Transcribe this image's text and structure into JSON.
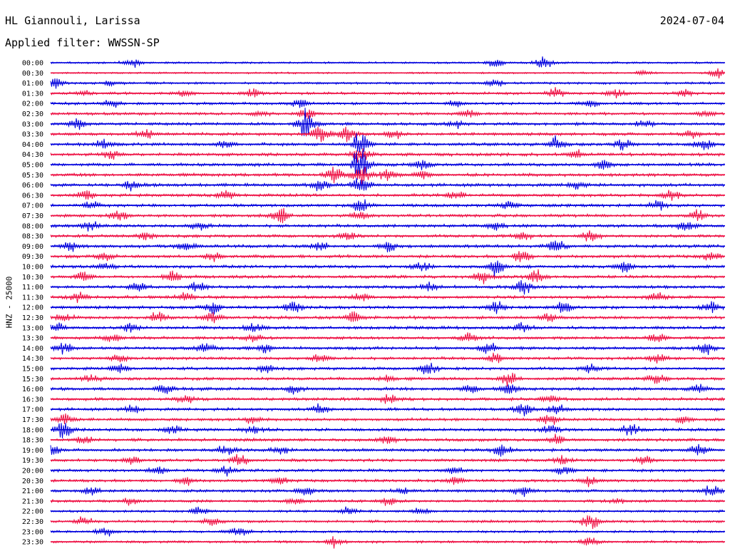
{
  "header": {
    "station": "HL Giannouli, Larissa",
    "date": "2024-07-04",
    "filter": "Applied filter: WWSSN-SP"
  },
  "chart_data": {
    "type": "line",
    "subtype": "helicorder",
    "ylabel": "HNZ - 25000",
    "trace_colors": [
      "#0000dd",
      "#ee1144"
    ],
    "rows": [
      {
        "label": "00:00",
        "level": 0.15,
        "events": [
          [
            0.12,
            0.8
          ],
          [
            0.66,
            0.6
          ],
          [
            0.73,
            0.9
          ]
        ]
      },
      {
        "label": "00:30",
        "level": 0.08,
        "events": [
          [
            0.99,
            0.9
          ],
          [
            0.88,
            0.3
          ]
        ]
      },
      {
        "label": "01:00",
        "level": 0.25,
        "events": [
          [
            0.005,
            0.9
          ],
          [
            0.09,
            0.4
          ],
          [
            0.66,
            0.6
          ]
        ]
      },
      {
        "label": "01:30",
        "level": 0.35,
        "events": [
          [
            0.05,
            0.4
          ],
          [
            0.2,
            0.5
          ],
          [
            0.3,
            0.6
          ],
          [
            0.75,
            0.8
          ],
          [
            0.84,
            0.7
          ],
          [
            0.94,
            0.6
          ]
        ]
      },
      {
        "label": "02:00",
        "level": 0.4,
        "events": [
          [
            0.09,
            0.5
          ],
          [
            0.37,
            0.6
          ],
          [
            0.6,
            0.5
          ],
          [
            0.8,
            0.5
          ]
        ]
      },
      {
        "label": "02:30",
        "level": 0.4,
        "events": [
          [
            0.31,
            0.5
          ],
          [
            0.38,
            0.8
          ],
          [
            0.62,
            0.7
          ],
          [
            0.97,
            0.5
          ]
        ]
      },
      {
        "label": "03:00",
        "level": 0.5,
        "events": [
          [
            0.04,
            0.8
          ],
          [
            0.38,
            2.2
          ],
          [
            0.6,
            0.6
          ],
          [
            0.88,
            0.6
          ]
        ]
      },
      {
        "label": "03:30",
        "level": 0.5,
        "events": [
          [
            0.14,
            0.7
          ],
          [
            0.4,
            1.5
          ],
          [
            0.44,
            1.2
          ],
          [
            0.51,
            0.9
          ],
          [
            0.95,
            0.6
          ]
        ]
      },
      {
        "label": "04:00",
        "level": 0.55,
        "events": [
          [
            0.08,
            0.8
          ],
          [
            0.26,
            0.7
          ],
          [
            0.46,
            1.8
          ],
          [
            0.75,
            1.0
          ],
          [
            0.85,
            0.8
          ],
          [
            0.97,
            1.0
          ]
        ]
      },
      {
        "label": "04:30",
        "level": 0.55,
        "events": [
          [
            0.09,
            0.7
          ],
          [
            0.46,
            1.2
          ],
          [
            0.78,
            0.7
          ]
        ]
      },
      {
        "label": "05:00",
        "level": 0.55,
        "events": [
          [
            0.46,
            3.0
          ],
          [
            0.55,
            0.8
          ],
          [
            0.82,
            0.7
          ]
        ]
      },
      {
        "label": "05:30",
        "level": 0.55,
        "events": [
          [
            0.42,
            1.4
          ],
          [
            0.46,
            1.8
          ],
          [
            0.5,
            1.0
          ],
          [
            0.55,
            0.7
          ]
        ]
      },
      {
        "label": "06:00",
        "level": 0.6,
        "events": [
          [
            0.12,
            0.7
          ],
          [
            0.4,
            0.8
          ],
          [
            0.46,
            1.5
          ],
          [
            0.78,
            0.6
          ]
        ]
      },
      {
        "label": "06:30",
        "level": 0.55,
        "events": [
          [
            0.05,
            0.7
          ],
          [
            0.26,
            0.6
          ],
          [
            0.6,
            0.6
          ],
          [
            0.92,
            0.8
          ]
        ]
      },
      {
        "label": "07:00",
        "level": 0.55,
        "events": [
          [
            0.06,
            0.6
          ],
          [
            0.46,
            1.2
          ],
          [
            0.68,
            0.6
          ],
          [
            0.9,
            0.6
          ]
        ]
      },
      {
        "label": "07:30",
        "level": 0.55,
        "events": [
          [
            0.1,
            0.8
          ],
          [
            0.34,
            1.2
          ],
          [
            0.46,
            0.6
          ],
          [
            0.96,
            0.7
          ]
        ]
      },
      {
        "label": "08:00",
        "level": 0.55,
        "events": [
          [
            0.06,
            0.7
          ],
          [
            0.22,
            0.6
          ],
          [
            0.66,
            0.7
          ],
          [
            0.94,
            0.8
          ]
        ]
      },
      {
        "label": "08:30",
        "level": 0.5,
        "events": [
          [
            0.14,
            0.6
          ],
          [
            0.44,
            0.7
          ],
          [
            0.7,
            0.7
          ],
          [
            0.8,
            0.9
          ]
        ]
      },
      {
        "label": "09:00",
        "level": 0.55,
        "events": [
          [
            0.03,
            0.7
          ],
          [
            0.2,
            0.8
          ],
          [
            0.4,
            0.7
          ],
          [
            0.5,
            0.8
          ],
          [
            0.75,
            0.9
          ]
        ]
      },
      {
        "label": "09:30",
        "level": 0.55,
        "events": [
          [
            0.08,
            0.6
          ],
          [
            0.24,
            0.7
          ],
          [
            0.7,
            1.0
          ],
          [
            0.98,
            0.7
          ]
        ]
      },
      {
        "label": "10:00",
        "level": 0.55,
        "events": [
          [
            0.08,
            0.6
          ],
          [
            0.55,
            0.7
          ],
          [
            0.66,
            1.2
          ],
          [
            0.85,
            0.8
          ]
        ]
      },
      {
        "label": "10:30",
        "level": 0.55,
        "events": [
          [
            0.05,
            0.7
          ],
          [
            0.18,
            0.9
          ],
          [
            0.64,
            1.1
          ],
          [
            0.72,
            0.9
          ]
        ]
      },
      {
        "label": "11:00",
        "level": 0.55,
        "events": [
          [
            0.13,
            0.7
          ],
          [
            0.22,
            0.8
          ],
          [
            0.56,
            0.7
          ],
          [
            0.7,
            1.1
          ]
        ]
      },
      {
        "label": "11:30",
        "level": 0.55,
        "events": [
          [
            0.04,
            0.6
          ],
          [
            0.2,
            0.7
          ],
          [
            0.46,
            0.6
          ],
          [
            0.9,
            0.6
          ]
        ]
      },
      {
        "label": "12:00",
        "level": 0.55,
        "events": [
          [
            0.24,
            0.9
          ],
          [
            0.36,
            1.0
          ],
          [
            0.66,
            0.9
          ],
          [
            0.76,
            0.8
          ],
          [
            0.98,
            0.8
          ]
        ]
      },
      {
        "label": "12:30",
        "level": 0.55,
        "events": [
          [
            0.02,
            0.7
          ],
          [
            0.16,
            1.0
          ],
          [
            0.24,
            0.9
          ],
          [
            0.45,
            0.8
          ],
          [
            0.74,
            0.7
          ]
        ]
      },
      {
        "label": "13:00",
        "level": 0.55,
        "events": [
          [
            0.01,
            0.8
          ],
          [
            0.12,
            0.6
          ],
          [
            0.3,
            0.7
          ],
          [
            0.7,
            0.8
          ]
        ]
      },
      {
        "label": "13:30",
        "level": 0.5,
        "events": [
          [
            0.09,
            0.6
          ],
          [
            0.3,
            0.6
          ],
          [
            0.62,
            0.7
          ],
          [
            0.9,
            0.7
          ]
        ]
      },
      {
        "label": "14:00",
        "level": 0.55,
        "events": [
          [
            0.02,
            0.8
          ],
          [
            0.23,
            0.7
          ],
          [
            0.32,
            0.7
          ],
          [
            0.65,
            0.9
          ],
          [
            0.97,
            1.0
          ]
        ]
      },
      {
        "label": "14:30",
        "level": 0.5,
        "events": [
          [
            0.1,
            0.6
          ],
          [
            0.4,
            0.6
          ],
          [
            0.66,
            0.7
          ],
          [
            0.9,
            0.7
          ]
        ]
      },
      {
        "label": "15:00",
        "level": 0.5,
        "events": [
          [
            0.1,
            0.8
          ],
          [
            0.32,
            0.6
          ],
          [
            0.56,
            0.9
          ],
          [
            0.8,
            0.6
          ]
        ]
      },
      {
        "label": "15:30",
        "level": 0.55,
        "events": [
          [
            0.06,
            0.6
          ],
          [
            0.5,
            0.6
          ],
          [
            0.68,
            1.1
          ],
          [
            0.9,
            0.8
          ]
        ]
      },
      {
        "label": "16:00",
        "level": 0.55,
        "events": [
          [
            0.17,
            0.7
          ],
          [
            0.36,
            0.6
          ],
          [
            0.62,
            0.7
          ],
          [
            0.68,
            0.9
          ],
          [
            0.96,
            0.7
          ]
        ]
      },
      {
        "label": "16:30",
        "level": 0.5,
        "events": [
          [
            0.2,
            0.6
          ],
          [
            0.5,
            0.6
          ],
          [
            0.74,
            0.6
          ]
        ]
      },
      {
        "label": "17:00",
        "level": 0.5,
        "events": [
          [
            0.12,
            0.6
          ],
          [
            0.4,
            0.8
          ],
          [
            0.7,
            0.9
          ],
          [
            0.75,
            0.8
          ]
        ]
      },
      {
        "label": "17:30",
        "level": 0.5,
        "events": [
          [
            0.02,
            0.7
          ],
          [
            0.3,
            0.6
          ],
          [
            0.74,
            0.8
          ],
          [
            0.94,
            0.6
          ]
        ]
      },
      {
        "label": "18:00",
        "level": 0.55,
        "events": [
          [
            0.02,
            1.3
          ],
          [
            0.18,
            0.7
          ],
          [
            0.3,
            0.6
          ],
          [
            0.74,
            0.8
          ],
          [
            0.86,
            0.8
          ]
        ]
      },
      {
        "label": "18:30",
        "level": 0.5,
        "events": [
          [
            0.05,
            0.6
          ],
          [
            0.5,
            0.6
          ],
          [
            0.75,
            0.8
          ]
        ]
      },
      {
        "label": "19:00",
        "level": 0.5,
        "events": [
          [
            0.0,
            0.8
          ],
          [
            0.26,
            0.7
          ],
          [
            0.34,
            0.7
          ],
          [
            0.67,
            0.9
          ],
          [
            0.96,
            0.8
          ]
        ]
      },
      {
        "label": "19:30",
        "level": 0.5,
        "events": [
          [
            0.12,
            0.8
          ],
          [
            0.28,
            0.9
          ],
          [
            0.76,
            0.7
          ],
          [
            0.88,
            0.6
          ]
        ]
      },
      {
        "label": "20:00",
        "level": 0.45,
        "events": [
          [
            0.16,
            0.6
          ],
          [
            0.26,
            0.7
          ],
          [
            0.6,
            0.5
          ],
          [
            0.76,
            0.6
          ]
        ]
      },
      {
        "label": "20:30",
        "level": 0.45,
        "events": [
          [
            0.2,
            0.6
          ],
          [
            0.34,
            0.6
          ],
          [
            0.6,
            0.5
          ],
          [
            0.8,
            0.7
          ]
        ]
      },
      {
        "label": "21:00",
        "level": 0.45,
        "events": [
          [
            0.06,
            0.6
          ],
          [
            0.38,
            0.8
          ],
          [
            0.52,
            0.6
          ],
          [
            0.7,
            0.7
          ],
          [
            0.98,
            0.8
          ]
        ]
      },
      {
        "label": "21:30",
        "level": 0.4,
        "events": [
          [
            0.12,
            0.5
          ],
          [
            0.36,
            0.5
          ],
          [
            0.5,
            0.6
          ],
          [
            0.84,
            0.5
          ]
        ]
      },
      {
        "label": "22:00",
        "level": 0.3,
        "events": [
          [
            0.22,
            0.6
          ],
          [
            0.44,
            0.7
          ],
          [
            0.55,
            0.6
          ]
        ]
      },
      {
        "label": "22:30",
        "level": 0.35,
        "events": [
          [
            0.05,
            0.7
          ],
          [
            0.24,
            0.6
          ],
          [
            0.8,
            1.3
          ]
        ]
      },
      {
        "label": "23:00",
        "level": 0.3,
        "events": [
          [
            0.08,
            0.8
          ],
          [
            0.28,
            0.8
          ]
        ]
      },
      {
        "label": "23:30",
        "level": 0.3,
        "events": [
          [
            0.42,
            0.8
          ],
          [
            0.8,
            0.8
          ]
        ]
      }
    ]
  }
}
